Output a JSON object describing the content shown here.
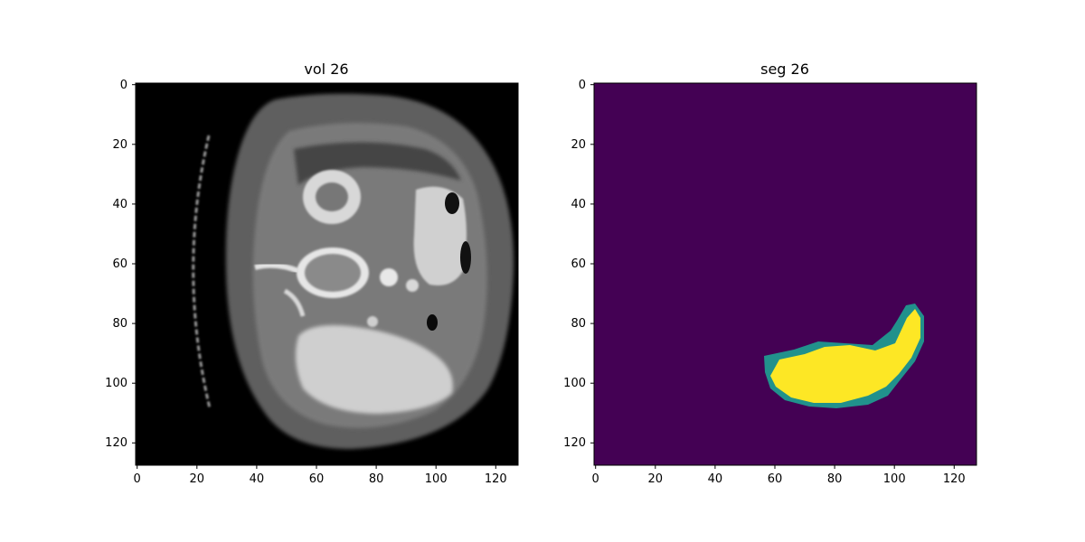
{
  "panels": [
    {
      "title": "vol 26",
      "kind": "ct-slice",
      "xlim": [
        0,
        128
      ],
      "ylim": [
        0,
        128
      ],
      "xticks": [
        0,
        20,
        40,
        60,
        80,
        100,
        120
      ],
      "yticks": [
        0,
        20,
        40,
        60,
        80,
        100,
        120
      ]
    },
    {
      "title": "seg 26",
      "kind": "segmentation-mask",
      "xlim": [
        0,
        128
      ],
      "ylim": [
        0,
        128
      ],
      "xticks": [
        0,
        20,
        40,
        60,
        80,
        100,
        120
      ],
      "yticks": [
        0,
        20,
        40,
        60,
        80,
        100,
        120
      ],
      "colors": {
        "background": "#440154",
        "class1": "#21918c",
        "class2": "#fde725"
      }
    }
  ]
}
